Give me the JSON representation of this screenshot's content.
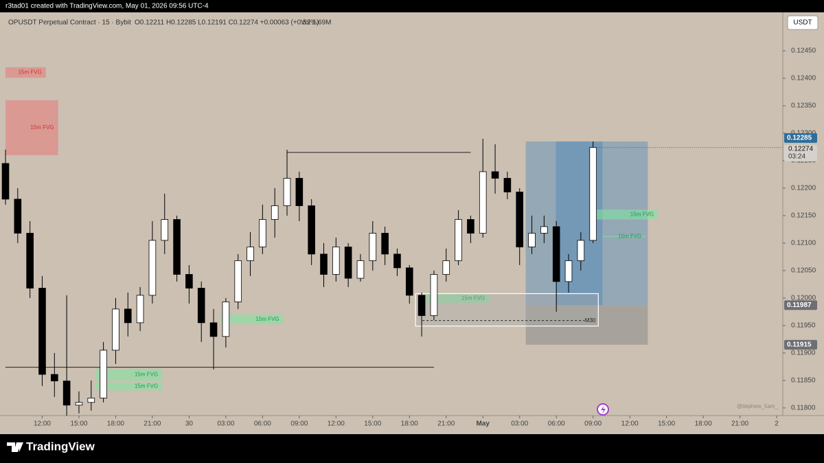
{
  "header": {
    "credit": "r3tad01 created with TradingView.com, May 01, 2026 09:56 UTC-4",
    "symbol": "OPUSDT Perpetual Contract · 15 · Bybit",
    "ohlc": "O0.12211 H0.12285 L0.12191 C0.12274 +0.00063 (+0.52%)",
    "volume": "Vol 1.69M",
    "currency": "USDT"
  },
  "footer": {
    "brand": "TradingView"
  },
  "chart_data": {
    "type": "candlestick",
    "up_color": "#ffffff",
    "down_color": "#000000",
    "wick_color": "#000000",
    "xlim": [
      0,
      63.5
    ],
    "ylim": [
      0.11786,
      0.12515
    ],
    "xticks": [
      {
        "value": 3,
        "label": "12:00"
      },
      {
        "value": 6,
        "label": "15:00"
      },
      {
        "value": 9,
        "label": "18:00"
      },
      {
        "value": 12,
        "label": "21:00"
      },
      {
        "value": 15,
        "label": "30"
      },
      {
        "value": 18,
        "label": "03:00"
      },
      {
        "value": 21,
        "label": "06:00"
      },
      {
        "value": 24,
        "label": "09:00"
      },
      {
        "value": 27,
        "label": "12:00"
      },
      {
        "value": 30,
        "label": "15:00"
      },
      {
        "value": 33,
        "label": "18:00"
      },
      {
        "value": 36,
        "label": "21:00"
      },
      {
        "value": 39,
        "label": "May"
      },
      {
        "value": 42,
        "label": "03:00"
      },
      {
        "value": 45,
        "label": "06:00"
      },
      {
        "value": 48,
        "label": "09:00"
      },
      {
        "value": 51,
        "label": "12:00"
      },
      {
        "value": 54,
        "label": "15:00"
      },
      {
        "value": 57,
        "label": "18:00"
      },
      {
        "value": 60,
        "label": "21:00"
      },
      {
        "value": 63,
        "label": "2"
      }
    ],
    "yticks": [
      {
        "value": 0.118,
        "label": "0.11800"
      },
      {
        "value": 0.1185,
        "label": "0.11850"
      },
      {
        "value": 0.119,
        "label": "0.11900"
      },
      {
        "value": 0.1195,
        "label": "0.11950"
      },
      {
        "value": 0.12,
        "label": "0.12000"
      },
      {
        "value": 0.1205,
        "label": "0.12050"
      },
      {
        "value": 0.121,
        "label": "0.12100"
      },
      {
        "value": 0.1215,
        "label": "0.12150"
      },
      {
        "value": 0.122,
        "label": "0.12200"
      },
      {
        "value": 0.1225,
        "label": "0.12250"
      },
      {
        "value": 0.123,
        "label": "0.12300"
      },
      {
        "value": 0.1235,
        "label": "0.12350"
      },
      {
        "value": 0.124,
        "label": "0.12400"
      },
      {
        "value": 0.1245,
        "label": "0.12450"
      }
    ],
    "x": [
      0,
      1,
      2,
      3,
      4,
      5,
      6,
      7,
      8,
      9,
      10,
      11,
      12,
      13,
      14,
      15,
      16,
      17,
      18,
      19,
      20,
      21,
      22,
      23,
      24,
      25,
      26,
      27,
      28,
      29,
      30,
      31,
      32,
      33,
      34,
      35,
      36,
      37,
      38,
      39,
      40,
      41,
      42,
      43,
      44,
      45,
      46,
      47,
      48
    ],
    "open": [
      0.12245,
      0.1218,
      0.12118,
      0.12018,
      0.11861,
      0.11849,
      0.11805,
      0.1181,
      0.11818,
      0.11905,
      0.1198,
      0.11955,
      0.12005,
      0.12105,
      0.12143,
      0.12043,
      0.12018,
      0.11955,
      0.1193,
      0.11993,
      0.12068,
      0.12093,
      0.12143,
      0.12168,
      0.12218,
      0.12168,
      0.1208,
      0.12043,
      0.12093,
      0.12036,
      0.12068,
      0.12118,
      0.1208,
      0.12055,
      0.12005,
      0.11968,
      0.12043,
      0.12068,
      0.12143,
      0.12118,
      0.1223,
      0.12218,
      0.12193,
      0.12093,
      0.12118,
      0.1213,
      0.1203,
      0.12068,
      0.12105
    ],
    "high": [
      0.1227,
      0.122,
      0.1214,
      0.1204,
      0.119,
      0.12005,
      0.1183,
      0.1185,
      0.1192,
      0.12,
      0.1201,
      0.1202,
      0.1214,
      0.1219,
      0.1215,
      0.1206,
      0.1203,
      0.1198,
      0.12,
      0.1208,
      0.1212,
      0.1217,
      0.122,
      0.1227,
      0.1223,
      0.1218,
      0.121,
      0.1211,
      0.121,
      0.1208,
      0.1214,
      0.1213,
      0.1209,
      0.1206,
      0.1201,
      0.1205,
      0.1209,
      0.1216,
      0.1215,
      0.1229,
      0.1228,
      0.1223,
      0.122,
      0.1215,
      0.1215,
      0.1214,
      0.1208,
      0.1212,
      0.12285
    ],
    "low": [
      0.1217,
      0.121,
      0.12,
      0.1184,
      0.1182,
      0.11786,
      0.1179,
      0.11795,
      0.1181,
      0.1188,
      0.1193,
      0.1194,
      0.1199,
      0.1208,
      0.1203,
      0.1199,
      0.1192,
      0.1187,
      0.1191,
      0.1198,
      0.1204,
      0.1208,
      0.1211,
      0.1215,
      0.1214,
      0.1206,
      0.1202,
      0.1203,
      0.1202,
      0.1203,
      0.1205,
      0.1206,
      0.1204,
      0.1199,
      0.1193,
      0.1196,
      0.1203,
      0.1206,
      0.121,
      0.1211,
      0.1219,
      0.1218,
      0.1206,
      0.1208,
      0.121,
      0.11975,
      0.1201,
      0.1205,
      0.121
    ],
    "close": [
      0.1218,
      0.12118,
      0.12018,
      0.11861,
      0.11849,
      0.11805,
      0.1181,
      0.11818,
      0.11905,
      0.1198,
      0.11955,
      0.12005,
      0.12105,
      0.12143,
      0.12043,
      0.12018,
      0.11955,
      0.1193,
      0.11993,
      0.12068,
      0.12093,
      0.12143,
      0.12168,
      0.12218,
      0.12168,
      0.1208,
      0.12043,
      0.12093,
      0.12036,
      0.12068,
      0.12118,
      0.1208,
      0.12055,
      0.12005,
      0.11968,
      0.12043,
      0.12068,
      0.12143,
      0.12118,
      0.1223,
      0.12218,
      0.12193,
      0.12093,
      0.12118,
      0.1213,
      0.1203,
      0.12068,
      0.12105,
      0.12274
    ],
    "zones": [
      {
        "label": "15m FVG",
        "top": 0.1242,
        "bottom": 0.12401,
        "x0": 0,
        "x1": 3.3,
        "color": "#e87878",
        "text_color": "#d23030"
      },
      {
        "label": "15m FVG",
        "top": 0.1236,
        "bottom": 0.1226,
        "x0": 0,
        "x1": 4.3,
        "color": "#e87878",
        "text_color": "#d23030"
      },
      {
        "label": "15m FVG",
        "top": 0.1197,
        "bottom": 0.11953,
        "x0": 17.6,
        "x1": 22.7,
        "color": "#7ee6a0",
        "text_color": "#1d9a55"
      },
      {
        "label": "15m FVG",
        "top": 0.11871,
        "bottom": 0.1185,
        "x0": 7.4,
        "x1": 12.8,
        "color": "#7ee6a0",
        "text_color": "#1d9a55"
      },
      {
        "label": "15m FVG",
        "top": 0.11846,
        "bottom": 0.11832,
        "x0": 7.4,
        "x1": 12.8,
        "color": "#7ee6a0",
        "text_color": "#1d9a55"
      },
      {
        "label": "15m FVG",
        "top": 0.12008,
        "bottom": 0.11991,
        "x0": 34.1,
        "x1": 39.5,
        "color": "#7ee6a0",
        "text_color": "#1d9a55"
      },
      {
        "label": "15m FVG",
        "top": 0.12161,
        "bottom": 0.12143,
        "x0": 48.1,
        "x1": 53.3,
        "color": "#7ee6a0",
        "text_color": "#1d9a55"
      },
      {
        "label": "15m FVG",
        "top": 0.12113,
        "bottom": 0.12111,
        "x0": 48.8,
        "x1": 52.3,
        "color": "#7ee6a0",
        "text_color": "#1d9a55"
      }
    ],
    "hlines": [
      {
        "price": 0.12265,
        "x0": 23,
        "x1": 38
      },
      {
        "price": 0.11874,
        "x0": 0,
        "x1": 35
      }
    ],
    "range_box": {
      "label": "M30",
      "top": 0.12008,
      "bottom": 0.11949,
      "mid": 0.11959,
      "x0": 33.5,
      "x1": 48.43
    },
    "position": {
      "target": 0.12285,
      "entry": 0.11987,
      "stop": 0.11915,
      "x0": 42.5,
      "x1": 52.47,
      "active_x0": 44.95,
      "active_x1": 48.77,
      "profit_color": "#5f8fb8",
      "stop_color": "#8a8a8a",
      "target_label": "0.12285",
      "entry_label": "0.11987",
      "stop_label": "0.11915"
    },
    "last_price": {
      "value": 0.12274,
      "label": "0.12274",
      "countdown": "03:24"
    },
    "watermark": "@tiephew_5am_"
  }
}
